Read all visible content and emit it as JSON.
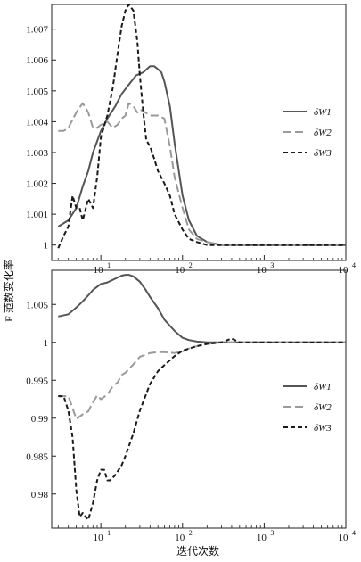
{
  "ylabel": "F 范数变化率",
  "xlabel": "迭代次数",
  "colors": {
    "dW1": "#555555",
    "dW2": "#9a9a9a",
    "dW3": "#1a1a1a"
  },
  "legend": {
    "dW1": "δW1",
    "dW2": "δW2",
    "dW3": "δW3"
  },
  "chart_data": [
    {
      "type": "line",
      "panel": "top",
      "xscale": "log",
      "xlim": [
        2.5,
        10000
      ],
      "ylim": [
        0.9995,
        1.0078
      ],
      "xticks": [
        {
          "value": 10,
          "label": "10",
          "exp": "1"
        },
        {
          "value": 100,
          "label": "10",
          "exp": "2"
        },
        {
          "value": 1000,
          "label": "10",
          "exp": "3"
        },
        {
          "value": 10000,
          "label": "10",
          "exp": "4"
        }
      ],
      "yticks": [
        {
          "value": 1.0,
          "label": "1"
        },
        {
          "value": 1.001,
          "label": "1.001"
        },
        {
          "value": 1.002,
          "label": "1.002"
        },
        {
          "value": 1.003,
          "label": "1.003"
        },
        {
          "value": 1.004,
          "label": "1.004"
        },
        {
          "value": 1.005,
          "label": "1.005"
        },
        {
          "value": 1.006,
          "label": "1.006"
        },
        {
          "value": 1.007,
          "label": "1.007"
        }
      ],
      "legend_position": "right",
      "series": [
        {
          "key": "dW1",
          "name": "δW1",
          "x": [
            3,
            4,
            5,
            6,
            7,
            8,
            10,
            12,
            15,
            18,
            22,
            27,
            33,
            40,
            45,
            50,
            55,
            60,
            70,
            80,
            100,
            120,
            150,
            200,
            300,
            500,
            1000,
            10000
          ],
          "y": [
            1.0006,
            1.0008,
            1.0012,
            1.0019,
            1.0024,
            1.003,
            1.0037,
            1.0041,
            1.0045,
            1.0049,
            1.0052,
            1.0055,
            1.0056,
            1.0058,
            1.0058,
            1.0057,
            1.0056,
            1.0053,
            1.0045,
            1.0033,
            1.0016,
            1.0008,
            1.0003,
            1.0001,
            1.0,
            1.0,
            1.0,
            1.0
          ]
        },
        {
          "key": "dW2",
          "name": "δW2",
          "x": [
            3,
            3.5,
            4,
            5,
            6,
            7,
            8,
            9,
            10,
            12,
            14,
            16,
            18,
            20,
            22,
            25,
            28,
            30,
            35,
            40,
            50,
            60,
            70,
            80,
            100,
            120,
            150,
            200,
            300,
            1000,
            10000
          ],
          "y": [
            1.0037,
            1.0037,
            1.0038,
            1.0043,
            1.0046,
            1.0043,
            1.0038,
            1.0038,
            1.0039,
            1.004,
            1.0038,
            1.0039,
            1.0041,
            1.0042,
            1.0046,
            1.0045,
            1.0043,
            1.0044,
            1.0043,
            1.0042,
            1.0042,
            1.0041,
            1.0032,
            1.0022,
            1.0012,
            1.0005,
            1.0002,
            1.0001,
            1.0,
            1.0,
            1.0
          ]
        },
        {
          "key": "dW3",
          "name": "δW3",
          "x": [
            3,
            3.5,
            4,
            4.5,
            5,
            5.5,
            6,
            7,
            8,
            9,
            10,
            12,
            14,
            16,
            18,
            20,
            22,
            25,
            28,
            30,
            33,
            36,
            40,
            45,
            50,
            60,
            70,
            80,
            100,
            120,
            150,
            200,
            300,
            1000,
            10000
          ],
          "y": [
            0.9999,
            1.0003,
            1.0006,
            1.0016,
            1.0012,
            1.0012,
            1.0008,
            1.0015,
            1.0012,
            1.0022,
            1.0035,
            1.0042,
            1.0051,
            1.0062,
            1.0071,
            1.0076,
            1.0078,
            1.0076,
            1.0066,
            1.0055,
            1.0043,
            1.0034,
            1.0032,
            1.0028,
            1.0024,
            1.002,
            1.0016,
            1.001,
            1.0005,
            1.0002,
            1.0001,
            1.0,
            1.0,
            1.0,
            1.0
          ]
        }
      ]
    },
    {
      "type": "line",
      "panel": "bottom",
      "xscale": "log",
      "xlim": [
        2.5,
        10000
      ],
      "ylim": [
        0.9755,
        1.0095
      ],
      "xticks": [
        {
          "value": 10,
          "label": "10",
          "exp": "1"
        },
        {
          "value": 100,
          "label": "10",
          "exp": "2"
        },
        {
          "value": 1000,
          "label": "10",
          "exp": "3"
        },
        {
          "value": 10000,
          "label": "10",
          "exp": "4"
        }
      ],
      "yticks": [
        {
          "value": 0.98,
          "label": "0.98"
        },
        {
          "value": 0.985,
          "label": "0.985"
        },
        {
          "value": 0.99,
          "label": "0.99"
        },
        {
          "value": 0.995,
          "label": "0.995"
        },
        {
          "value": 1.0,
          "label": "1"
        },
        {
          "value": 1.005,
          "label": "1.005"
        }
      ],
      "legend_position": "right",
      "series": [
        {
          "key": "dW1",
          "name": "δW1",
          "x": [
            3,
            4,
            5,
            6,
            7,
            8,
            10,
            12,
            15,
            18,
            20,
            22,
            25,
            30,
            35,
            40,
            50,
            60,
            80,
            100,
            120,
            150,
            200,
            300,
            1000,
            10000
          ],
          "y": [
            1.0034,
            1.0037,
            1.0046,
            1.0054,
            1.0062,
            1.0069,
            1.0077,
            1.0079,
            1.0084,
            1.0088,
            1.0089,
            1.0089,
            1.0087,
            1.008,
            1.007,
            1.006,
            1.0045,
            1.003,
            1.0015,
            1.0006,
            1.0003,
            1.0001,
            1.0,
            1.0,
            1.0,
            1.0
          ]
        },
        {
          "key": "dW2",
          "name": "δW2",
          "x": [
            3,
            4,
            5,
            6,
            7,
            8,
            9,
            10,
            12,
            14,
            16,
            18,
            20,
            25,
            30,
            40,
            50,
            60,
            80,
            100,
            120,
            150,
            200,
            300,
            500,
            1000,
            10000
          ],
          "y": [
            0.9929,
            0.9929,
            0.9899,
            0.9905,
            0.9909,
            0.9921,
            0.993,
            0.9925,
            0.9931,
            0.9942,
            0.9947,
            0.9957,
            0.996,
            0.9971,
            0.9981,
            0.9986,
            0.9987,
            0.9987,
            0.9986,
            0.9988,
            0.9992,
            0.9995,
            0.9998,
            1.0,
            1.0,
            1.0,
            1.0
          ]
        },
        {
          "key": "dW3",
          "name": "δW3",
          "x": [
            3,
            3.5,
            4,
            4.5,
            5,
            5.5,
            6,
            6.5,
            7,
            8,
            9,
            10,
            11,
            12,
            13,
            15,
            18,
            20,
            25,
            30,
            40,
            50,
            60,
            80,
            100,
            150,
            200,
            300,
            400,
            500,
            700,
            1000,
            10000
          ],
          "y": [
            0.9929,
            0.9929,
            0.991,
            0.9875,
            0.9805,
            0.977,
            0.9775,
            0.977,
            0.9766,
            0.9788,
            0.9818,
            0.9832,
            0.9832,
            0.9818,
            0.9818,
            0.9825,
            0.9838,
            0.985,
            0.988,
            0.991,
            0.9945,
            0.9962,
            0.997,
            0.9982,
            0.9989,
            0.9995,
            0.9998,
            1.0,
            1.0005,
            1.0,
            1.0,
            1.0,
            1.0
          ]
        }
      ]
    }
  ]
}
